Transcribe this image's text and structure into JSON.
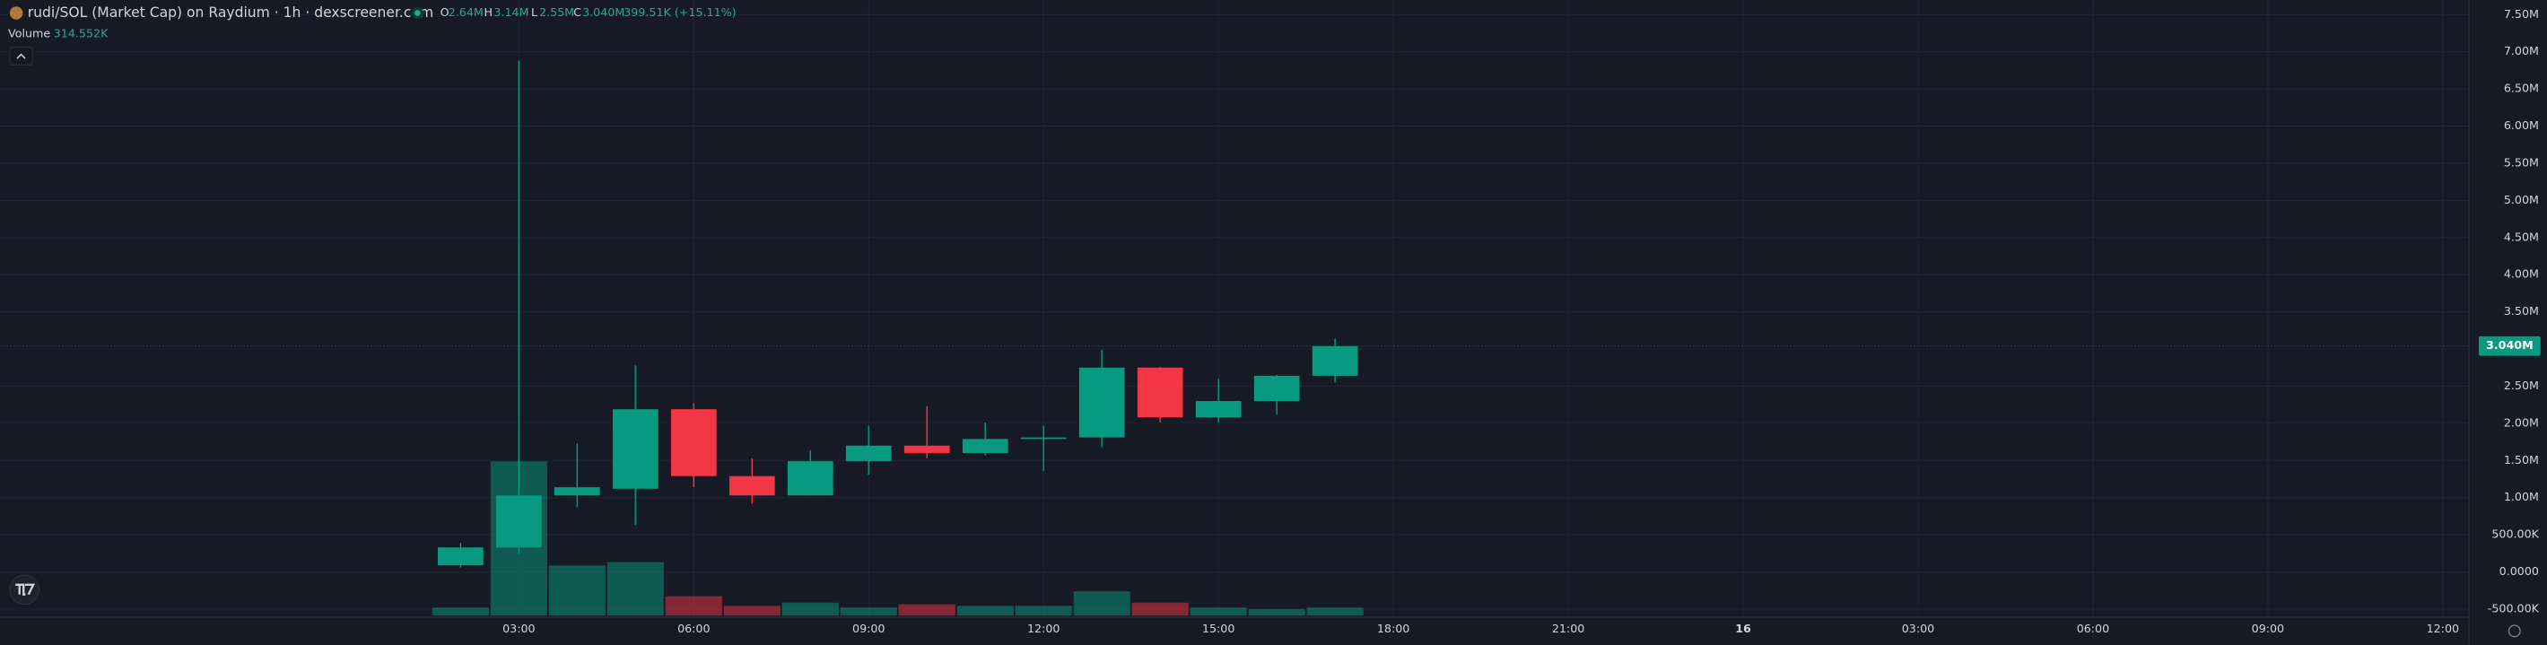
{
  "chart_data": {
    "type": "candlestick",
    "title": "rudi/SOL (Market Cap) on Raydium · 1h · dexscreener.com",
    "legend": {
      "open_label": "O",
      "open": "2.64M",
      "high_label": "H",
      "high": "3.14M",
      "low_label": "L",
      "low": "2.55M",
      "close_label": "C",
      "close": "3.040M",
      "change": "399.51K (+15.11%)"
    },
    "volume_label": "Volume",
    "volume_value": "314.552K",
    "last_price_label": "3.040M",
    "x": [
      2,
      3,
      4,
      5,
      6,
      7,
      8,
      9,
      10,
      11,
      12,
      13,
      14,
      15,
      16,
      17
    ],
    "open": [
      90000,
      330000,
      1030000,
      1120000,
      2190000,
      1290000,
      1030000,
      1490000,
      1700000,
      1600000,
      1790000,
      1810000,
      2750000,
      2080000,
      2300000,
      2640000
    ],
    "high": [
      390000,
      6880000,
      1730000,
      2780000,
      2270000,
      1530000,
      1640000,
      1970000,
      2230000,
      2010000,
      1970000,
      2990000,
      2760000,
      2600000,
      2650000,
      3140000
    ],
    "low": [
      60000,
      250000,
      870000,
      630000,
      1140000,
      920000,
      1030000,
      1310000,
      1530000,
      1570000,
      1360000,
      1680000,
      2010000,
      2010000,
      2120000,
      2550000
    ],
    "close": [
      330000,
      1030000,
      1140000,
      2190000,
      1290000,
      1030000,
      1490000,
      1700000,
      1600000,
      1790000,
      1810000,
      2750000,
      2080000,
      2300000,
      2640000,
      3040000
    ],
    "volume": [
      315000,
      6000000,
      1950000,
      2080000,
      755000,
      377000,
      503000,
      315000,
      440000,
      377000,
      377000,
      944000,
      503000,
      315000,
      252000,
      314552
    ],
    "up_color": "#089981",
    "down_color": "#f23645",
    "xlim": [
      -5.9,
      36.45
    ],
    "xticks": [
      {
        "value": 3,
        "label": "03:00"
      },
      {
        "value": 6,
        "label": "06:00"
      },
      {
        "value": 9,
        "label": "09:00"
      },
      {
        "value": 12,
        "label": "12:00"
      },
      {
        "value": 15,
        "label": "15:00"
      },
      {
        "value": 18,
        "label": "18:00"
      },
      {
        "value": 21,
        "label": "21:00"
      },
      {
        "value": 24,
        "label": "16"
      },
      {
        "value": 27,
        "label": "03:00"
      },
      {
        "value": 30,
        "label": "06:00"
      },
      {
        "value": 33,
        "label": "09:00"
      },
      {
        "value": 36,
        "label": "12:00"
      }
    ],
    "ylim": [
      -500000,
      7500000
    ],
    "yticks": [
      {
        "value": -500000,
        "label": "-500.00K"
      },
      {
        "value": 0,
        "label": "0.0000"
      },
      {
        "value": 500000,
        "label": "500.00K"
      },
      {
        "value": 1000000,
        "label": "1.00M"
      },
      {
        "value": 1500000,
        "label": "1.50M"
      },
      {
        "value": 2000000,
        "label": "2.00M"
      },
      {
        "value": 2500000,
        "label": "2.50M"
      },
      {
        "value": 3000000,
        "label": "3.00M"
      },
      {
        "value": 3500000,
        "label": "3.50M"
      },
      {
        "value": 4000000,
        "label": "4.00M"
      },
      {
        "value": 4500000,
        "label": "4.50M"
      },
      {
        "value": 5000000,
        "label": "5.00M"
      },
      {
        "value": 5500000,
        "label": "5.50M"
      },
      {
        "value": 6000000,
        "label": "6.00M"
      },
      {
        "value": 6500000,
        "label": "6.50M"
      },
      {
        "value": 7000000,
        "label": "7.00M"
      },
      {
        "value": 7500000,
        "label": "7.50M"
      }
    ],
    "grid": true
  }
}
